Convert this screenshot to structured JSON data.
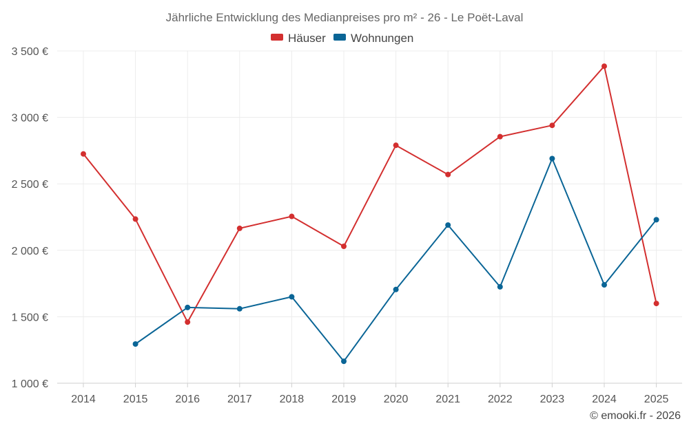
{
  "chart_data": {
    "type": "line",
    "title": "Jährliche Entwicklung des Medianpreises pro m² - 26 - Le Poët-Laval",
    "x": [
      "2014",
      "2015",
      "2016",
      "2017",
      "2018",
      "2019",
      "2020",
      "2021",
      "2022",
      "2023",
      "2024",
      "2025"
    ],
    "ylim": [
      1000,
      3500
    ],
    "yticks": [
      1000,
      1500,
      2000,
      2500,
      3000,
      3500
    ],
    "ytick_labels": [
      "1 000 €",
      "1 500 €",
      "2 000 €",
      "2 500 €",
      "3 000 €",
      "3 500 €"
    ],
    "legend_position": "top-center",
    "grid": true,
    "series": [
      {
        "name": "Häuser",
        "color": "#d32f2f",
        "values": [
          2725,
          2235,
          1460,
          2165,
          2255,
          2030,
          2790,
          2570,
          2855,
          2940,
          3385,
          1600
        ]
      },
      {
        "name": "Wohnungen",
        "color": "#0a6596",
        "values": [
          null,
          1295,
          1570,
          1560,
          1650,
          1165,
          1705,
          2190,
          1725,
          2690,
          1740,
          2230
        ]
      }
    ]
  },
  "copyright": "© emooki.fr - 2026"
}
